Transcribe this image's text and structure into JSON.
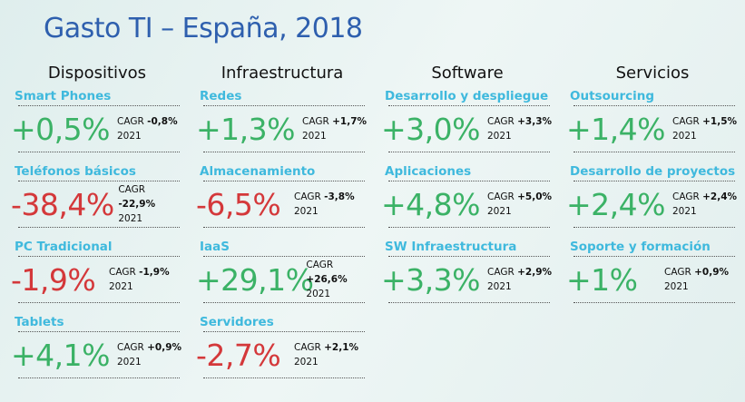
{
  "title": "Gasto TI – España, 2018",
  "colors": {
    "positive": "#3bb266",
    "negative": "#d4383a",
    "label": "#3fb9dd",
    "title": "#2e5fae"
  },
  "cagr_label": "CAGR",
  "year": "2021",
  "columns": [
    {
      "header": "Dispositivos",
      "items": [
        {
          "label": "Smart Phones",
          "value": "+0,5%",
          "cagr": "-0,8%",
          "sign": "pos"
        },
        {
          "label": "Teléfonos básicos",
          "value": "-38,4%",
          "cagr": "-22,9%",
          "sign": "neg"
        },
        {
          "label": "PC Tradicional",
          "value": "-1,9%",
          "cagr": "-1,9%",
          "sign": "neg"
        },
        {
          "label": "Tablets",
          "value": "+4,1%",
          "cagr": "+0,9%",
          "sign": "pos"
        }
      ]
    },
    {
      "header": "Infraestructura",
      "items": [
        {
          "label": "Redes",
          "value": "+1,3%",
          "cagr": "+1,7%",
          "sign": "pos"
        },
        {
          "label": "Almacenamiento",
          "value": "-6,5%",
          "cagr": "-3,8%",
          "sign": "neg"
        },
        {
          "label": "IaaS",
          "value": "+29,1%",
          "cagr": "+26,6%",
          "sign": "pos"
        },
        {
          "label": "Servidores",
          "value": "-2,7%",
          "cagr": "+2,1%",
          "sign": "neg"
        }
      ]
    },
    {
      "header": "Software",
      "items": [
        {
          "label": "Desarrollo y despliegue",
          "value": "+3,0%",
          "cagr": "+3,3%",
          "sign": "pos"
        },
        {
          "label": "Aplicaciones",
          "value": "+4,8%",
          "cagr": "+5,0%",
          "sign": "pos"
        },
        {
          "label": "SW Infraestructura",
          "value": "+3,3%",
          "cagr": "+2,9%",
          "sign": "pos"
        }
      ]
    },
    {
      "header": "Servicios",
      "items": [
        {
          "label": "Outsourcing",
          "value": "+1,4%",
          "cagr": "+1,5%",
          "sign": "pos"
        },
        {
          "label": "Desarrollo de proyectos",
          "value": "+2,4%",
          "cagr": "+2,4%",
          "sign": "pos"
        },
        {
          "label": "Soporte y formación",
          "value": "+1%",
          "cagr": "+0,9%",
          "sign": "pos"
        }
      ]
    }
  ]
}
